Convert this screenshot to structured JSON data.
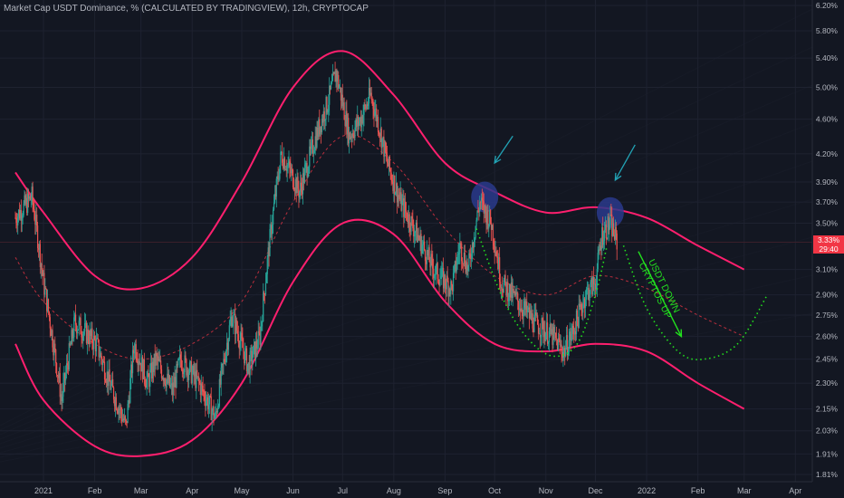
{
  "header": {
    "title": "Market Cap USDT Dominance, % (CALCULATED BY TRADINGVIEW), 12h, CRYPTOCAP"
  },
  "price_tag": {
    "value": "3.33%",
    "countdown": "29:40"
  },
  "annotation": {
    "text_line1": "USDT DOWN",
    "text_line2": "CRYPTOS UP"
  },
  "colors": {
    "background": "#131722",
    "channel": "#ff1f6e",
    "midline": "#f23645",
    "projection": "#22e11e",
    "arrow": "#22a3b5",
    "highlight": "#2a3a8c",
    "up_candle": "#26a69a",
    "down_candle": "#ef5350",
    "axis_text": "#b2b5be",
    "grid": "#1e2230"
  },
  "chart_data": {
    "type": "candlestick",
    "title": "Market Cap USDT Dominance, % (CALCULATED BY TRADINGVIEW), 12h, CRYPTOCAP",
    "interval": "12h",
    "ylim": [
      1.78,
      6.25
    ],
    "y_scale": "log",
    "y_ticks": [
      "6.20%",
      "5.80%",
      "5.40%",
      "5.00%",
      "4.60%",
      "4.20%",
      "3.90%",
      "3.70%",
      "3.50%",
      "3.10%",
      "2.90%",
      "2.75%",
      "2.60%",
      "2.45%",
      "2.30%",
      "2.15%",
      "2.03%",
      "1.91%",
      "1.81%"
    ],
    "x_range": [
      "2020-12-15",
      "2022-04-15"
    ],
    "x_ticks": [
      {
        "label": "2021",
        "date": "2021-01-01"
      },
      {
        "label": "Feb",
        "date": "2021-02-01"
      },
      {
        "label": "Mar",
        "date": "2021-03-01"
      },
      {
        "label": "Apr",
        "date": "2021-04-01"
      },
      {
        "label": "May",
        "date": "2021-05-01"
      },
      {
        "label": "Jun",
        "date": "2021-06-01"
      },
      {
        "label": "Jul",
        "date": "2021-07-01"
      },
      {
        "label": "Aug",
        "date": "2021-08-01"
      },
      {
        "label": "Sep",
        "date": "2021-09-01"
      },
      {
        "label": "Oct",
        "date": "2021-10-01"
      },
      {
        "label": "Nov",
        "date": "2021-11-01"
      },
      {
        "label": "Dec",
        "date": "2021-12-01"
      },
      {
        "label": "2022",
        "date": "2022-01-01"
      },
      {
        "label": "Feb",
        "date": "2022-02-01"
      },
      {
        "label": "Mar",
        "date": "2022-03-01"
      },
      {
        "label": "Apr",
        "date": "2022-04-01"
      }
    ],
    "last_price": 3.33,
    "price_anchors": [
      [
        "2020-12-15",
        3.55
      ],
      [
        "2020-12-25",
        3.75
      ],
      [
        "2021-01-01",
        3.0
      ],
      [
        "2021-01-07",
        2.55
      ],
      [
        "2021-01-12",
        2.2
      ],
      [
        "2021-01-20",
        2.7
      ],
      [
        "2021-02-02",
        2.55
      ],
      [
        "2021-02-10",
        2.3
      ],
      [
        "2021-02-20",
        2.05
      ],
      [
        "2021-02-25",
        2.55
      ],
      [
        "2021-03-05",
        2.3
      ],
      [
        "2021-03-10",
        2.45
      ],
      [
        "2021-03-20",
        2.25
      ],
      [
        "2021-03-25",
        2.45
      ],
      [
        "2021-04-05",
        2.3
      ],
      [
        "2021-04-15",
        2.1
      ],
      [
        "2021-04-25",
        2.75
      ],
      [
        "2021-05-05",
        2.4
      ],
      [
        "2021-05-12",
        2.6
      ],
      [
        "2021-05-20",
        3.6
      ],
      [
        "2021-05-25",
        4.2
      ],
      [
        "2021-06-05",
        3.8
      ],
      [
        "2021-06-15",
        4.4
      ],
      [
        "2021-06-22",
        4.8
      ],
      [
        "2021-06-27",
        5.2
      ],
      [
        "2021-07-05",
        4.4
      ],
      [
        "2021-07-12",
        4.6
      ],
      [
        "2021-07-18",
        4.9
      ],
      [
        "2021-07-22",
        4.6
      ],
      [
        "2021-07-28",
        4.1
      ],
      [
        "2021-08-05",
        3.7
      ],
      [
        "2021-08-15",
        3.4
      ],
      [
        "2021-08-25",
        3.1
      ],
      [
        "2021-09-05",
        2.95
      ],
      [
        "2021-09-10",
        3.3
      ],
      [
        "2021-09-15",
        3.1
      ],
      [
        "2021-09-22",
        3.7
      ],
      [
        "2021-09-29",
        3.5
      ],
      [
        "2021-10-05",
        3.0
      ],
      [
        "2021-10-15",
        2.85
      ],
      [
        "2021-10-25",
        2.7
      ],
      [
        "2021-11-05",
        2.6
      ],
      [
        "2021-11-12",
        2.5
      ],
      [
        "2021-11-18",
        2.65
      ],
      [
        "2021-11-25",
        2.9
      ],
      [
        "2021-12-01",
        3.0
      ],
      [
        "2021-12-05",
        3.4
      ],
      [
        "2021-12-10",
        3.5
      ],
      [
        "2021-12-14",
        3.33
      ]
    ],
    "channel_upper": [
      [
        "2020-12-15",
        4.0
      ],
      [
        "2021-01-01",
        3.6
      ],
      [
        "2021-02-01",
        3.05
      ],
      [
        "2021-03-01",
        2.95
      ],
      [
        "2021-04-01",
        3.2
      ],
      [
        "2021-05-01",
        3.9
      ],
      [
        "2021-06-01",
        5.0
      ],
      [
        "2021-07-01",
        5.5
      ],
      [
        "2021-08-01",
        4.9
      ],
      [
        "2021-09-01",
        4.1
      ],
      [
        "2021-10-01",
        3.8
      ],
      [
        "2021-11-01",
        3.6
      ],
      [
        "2021-12-01",
        3.65
      ],
      [
        "2022-01-01",
        3.55
      ],
      [
        "2022-02-01",
        3.3
      ],
      [
        "2022-03-01",
        3.1
      ]
    ],
    "channel_lower": [
      [
        "2020-12-15",
        2.55
      ],
      [
        "2021-01-01",
        2.2
      ],
      [
        "2021-02-01",
        1.95
      ],
      [
        "2021-03-01",
        1.9
      ],
      [
        "2021-04-01",
        1.98
      ],
      [
        "2021-05-01",
        2.3
      ],
      [
        "2021-06-01",
        3.0
      ],
      [
        "2021-07-01",
        3.5
      ],
      [
        "2021-08-01",
        3.4
      ],
      [
        "2021-09-01",
        2.85
      ],
      [
        "2021-10-01",
        2.55
      ],
      [
        "2021-11-01",
        2.5
      ],
      [
        "2021-12-01",
        2.55
      ],
      [
        "2022-01-01",
        2.5
      ],
      [
        "2022-02-01",
        2.3
      ],
      [
        "2022-03-01",
        2.15
      ]
    ],
    "mid_line": [
      [
        "2020-12-15",
        3.2
      ],
      [
        "2021-01-01",
        2.85
      ],
      [
        "2021-02-01",
        2.55
      ],
      [
        "2021-03-01",
        2.45
      ],
      [
        "2021-04-01",
        2.55
      ],
      [
        "2021-05-01",
        2.85
      ],
      [
        "2021-06-01",
        3.7
      ],
      [
        "2021-07-01",
        4.4
      ],
      [
        "2021-08-01",
        4.1
      ],
      [
        "2021-09-01",
        3.45
      ],
      [
        "2021-10-01",
        3.05
      ],
      [
        "2021-11-01",
        2.9
      ],
      [
        "2021-12-01",
        3.05
      ],
      [
        "2022-01-01",
        2.95
      ],
      [
        "2022-02-01",
        2.75
      ],
      [
        "2022-03-01",
        2.6
      ]
    ],
    "projection_past": [
      [
        "2021-09-20",
        3.45
      ],
      [
        "2021-10-05",
        2.9
      ],
      [
        "2021-10-20",
        2.6
      ],
      [
        "2021-11-05",
        2.47
      ],
      [
        "2021-11-20",
        2.55
      ],
      [
        "2021-12-01",
        2.9
      ],
      [
        "2021-12-08",
        3.3
      ]
    ],
    "projection_future": [
      [
        "2021-12-18",
        3.3
      ],
      [
        "2022-01-01",
        2.8
      ],
      [
        "2022-01-20",
        2.5
      ],
      [
        "2022-02-05",
        2.45
      ],
      [
        "2022-02-25",
        2.55
      ],
      [
        "2022-03-15",
        2.9
      ]
    ],
    "highlight_circles": [
      {
        "date": "2021-09-25",
        "value": 3.75
      },
      {
        "date": "2021-12-10",
        "value": 3.6
      }
    ],
    "pointer_arrows": [
      {
        "from": [
          "2021-10-12",
          4.4
        ],
        "to": [
          "2021-10-01",
          4.1
        ]
      },
      {
        "from": [
          "2021-12-25",
          4.3
        ],
        "to": [
          "2021-12-13",
          3.92
        ]
      }
    ],
    "trend_arrow": {
      "from": [
        "2021-12-27",
        3.25
      ],
      "to": [
        "2022-01-22",
        2.6
      ]
    }
  }
}
